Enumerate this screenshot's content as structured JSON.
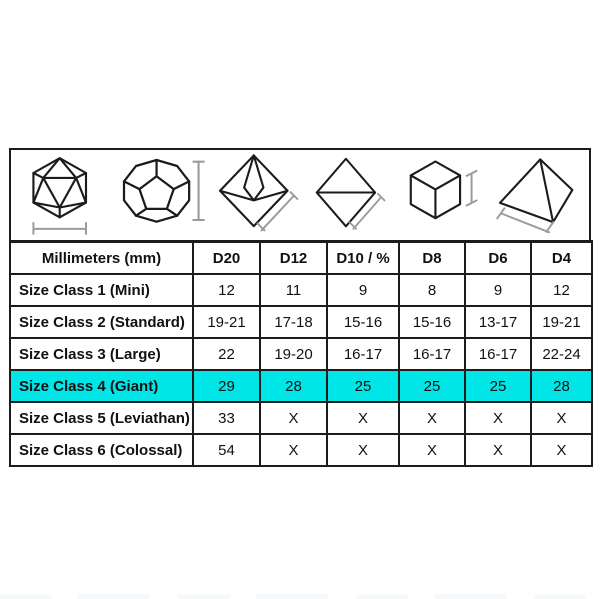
{
  "table": {
    "header": [
      "Millimeters (mm)",
      "D20",
      "D12",
      "D10 / %",
      "D8",
      "D6",
      "D4"
    ],
    "rows": [
      {
        "label": "Size Class 1 (Mini)",
        "values": [
          "12",
          "11",
          "9",
          "8",
          "9",
          "12"
        ],
        "highlight": false
      },
      {
        "label": "Size Class 2 (Standard)",
        "values": [
          "19-21",
          "17-18",
          "15-16",
          "15-16",
          "13-17",
          "19-21"
        ],
        "highlight": false
      },
      {
        "label": "Size Class 3 (Large)",
        "values": [
          "22",
          "19-20",
          "16-17",
          "16-17",
          "16-17",
          "22-24"
        ],
        "highlight": false
      },
      {
        "label": "Size Class 4 (Giant)",
        "values": [
          "29",
          "28",
          "25",
          "25",
          "25",
          "28"
        ],
        "highlight": true
      },
      {
        "label": "Size Class 5 (Leviathan)",
        "values": [
          "33",
          "X",
          "X",
          "X",
          "X",
          "X"
        ],
        "highlight": false
      },
      {
        "label": "Size Class 6 (Colossal)",
        "values": [
          "54",
          "X",
          "X",
          "X",
          "X",
          "X"
        ],
        "highlight": false
      }
    ],
    "highlight_color": "#00e6e6",
    "border_color": "#1c1c1c"
  },
  "dice_icons": [
    "d20-die-icon",
    "d12-die-icon",
    "d10-die-icon",
    "d8-die-icon",
    "d6-die-icon",
    "d4-die-icon"
  ],
  "chart_data": {
    "type": "table",
    "title": "Dice size chart (millimeters) by size class",
    "columns": [
      "Millimeters (mm)",
      "D20",
      "D12",
      "D10 / %",
      "D8",
      "D6",
      "D4"
    ],
    "rows": [
      [
        "Size Class 1 (Mini)",
        "12",
        "11",
        "9",
        "8",
        "9",
        "12"
      ],
      [
        "Size Class 2 (Standard)",
        "19-21",
        "17-18",
        "15-16",
        "15-16",
        "13-17",
        "19-21"
      ],
      [
        "Size Class 3 (Large)",
        "22",
        "19-20",
        "16-17",
        "16-17",
        "16-17",
        "22-24"
      ],
      [
        "Size Class 4 (Giant)",
        "29",
        "28",
        "25",
        "25",
        "25",
        "28"
      ],
      [
        "Size Class 5 (Leviathan)",
        "33",
        "X",
        "X",
        "X",
        "X",
        "X"
      ],
      [
        "Size Class 6 (Colossal)",
        "54",
        "X",
        "X",
        "X",
        "X",
        "X"
      ]
    ],
    "highlighted_row": "Size Class 4 (Giant)",
    "highlight_color": "#00e6e6"
  }
}
